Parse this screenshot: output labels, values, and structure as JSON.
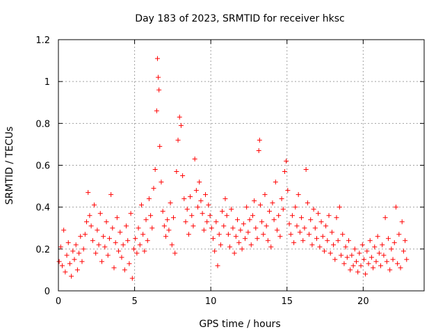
{
  "chart_data": {
    "type": "scatter",
    "title": "Day 183 of 2023, SRMTID for receiver hksc",
    "xlabel": "GPS time / hours",
    "ylabel": "SRMTID / TECUs",
    "xlim": [
      0,
      24
    ],
    "ylim": [
      0,
      1.2
    ],
    "x_ticks": [
      0,
      5,
      10,
      15,
      20
    ],
    "y_ticks": [
      0,
      0.2,
      0.4,
      0.6,
      0.8,
      1.0,
      1.2
    ],
    "y_tick_labels": [
      "0",
      "0.2",
      "0.4",
      "0.6",
      "0.8",
      "1",
      "1.2"
    ],
    "grid": true,
    "marker": "+",
    "color": "#ff0000",
    "series": [
      {
        "name": "SRMTID",
        "points": [
          [
            0.05,
            0.14
          ],
          [
            0.15,
            0.21
          ],
          [
            0.25,
            0.12
          ],
          [
            0.35,
            0.29
          ],
          [
            0.45,
            0.09
          ],
          [
            0.55,
            0.17
          ],
          [
            0.65,
            0.23
          ],
          [
            0.75,
            0.13
          ],
          [
            0.85,
            0.07
          ],
          [
            0.95,
            0.19
          ],
          [
            1.05,
            0.15
          ],
          [
            1.15,
            0.22
          ],
          [
            1.25,
            0.1
          ],
          [
            1.35,
            0.18
          ],
          [
            1.45,
            0.26
          ],
          [
            1.55,
            0.14
          ],
          [
            1.65,
            0.2
          ],
          [
            1.75,
            0.27
          ],
          [
            1.85,
            0.33
          ],
          [
            1.95,
            0.47
          ],
          [
            2.05,
            0.36
          ],
          [
            2.15,
            0.31
          ],
          [
            2.25,
            0.24
          ],
          [
            2.35,
            0.41
          ],
          [
            2.45,
            0.18
          ],
          [
            2.55,
            0.29
          ],
          [
            2.65,
            0.22
          ],
          [
            2.75,
            0.37
          ],
          [
            2.85,
            0.14
          ],
          [
            2.95,
            0.26
          ],
          [
            3.05,
            0.21
          ],
          [
            3.15,
            0.33
          ],
          [
            3.25,
            0.17
          ],
          [
            3.35,
            0.25
          ],
          [
            3.45,
            0.46
          ],
          [
            3.55,
            0.3
          ],
          [
            3.65,
            0.11
          ],
          [
            3.75,
            0.23
          ],
          [
            3.85,
            0.35
          ],
          [
            3.95,
            0.19
          ],
          [
            4.05,
            0.28
          ],
          [
            4.15,
            0.16
          ],
          [
            4.25,
            0.22
          ],
          [
            4.35,
            0.1
          ],
          [
            4.45,
            0.31
          ],
          [
            4.55,
            0.24
          ],
          [
            4.65,
            0.13
          ],
          [
            4.75,
            0.37
          ],
          [
            4.85,
            0.06
          ],
          [
            4.95,
            0.2
          ],
          [
            5.05,
            0.25
          ],
          [
            5.15,
            0.18
          ],
          [
            5.25,
            0.3
          ],
          [
            5.35,
            0.22
          ],
          [
            5.45,
            0.41
          ],
          [
            5.55,
            0.27
          ],
          [
            5.65,
            0.19
          ],
          [
            5.75,
            0.34
          ],
          [
            5.85,
            0.24
          ],
          [
            5.95,
            0.44
          ],
          [
            6.05,
            0.36
          ],
          [
            6.15,
            0.3
          ],
          [
            6.25,
            0.49
          ],
          [
            6.35,
            0.58
          ],
          [
            6.45,
            0.86
          ],
          [
            6.5,
            1.11
          ],
          [
            6.55,
            1.02
          ],
          [
            6.6,
            0.96
          ],
          [
            6.65,
            0.69
          ],
          [
            6.75,
            0.52
          ],
          [
            6.85,
            0.38
          ],
          [
            6.95,
            0.31
          ],
          [
            7.05,
            0.26
          ],
          [
            7.15,
            0.34
          ],
          [
            7.25,
            0.29
          ],
          [
            7.35,
            0.42
          ],
          [
            7.45,
            0.22
          ],
          [
            7.55,
            0.35
          ],
          [
            7.65,
            0.18
          ],
          [
            7.75,
            0.57
          ],
          [
            7.85,
            0.72
          ],
          [
            7.95,
            0.83
          ],
          [
            8.05,
            0.79
          ],
          [
            8.15,
            0.55
          ],
          [
            8.25,
            0.44
          ],
          [
            8.35,
            0.33
          ],
          [
            8.45,
            0.39
          ],
          [
            8.55,
            0.27
          ],
          [
            8.65,
            0.45
          ],
          [
            8.75,
            0.36
          ],
          [
            8.85,
            0.31
          ],
          [
            8.95,
            0.63
          ],
          [
            9.05,
            0.48
          ],
          [
            9.15,
            0.4
          ],
          [
            9.25,
            0.52
          ],
          [
            9.35,
            0.43
          ],
          [
            9.45,
            0.37
          ],
          [
            9.55,
            0.29
          ],
          [
            9.65,
            0.46
          ],
          [
            9.75,
            0.33
          ],
          [
            9.85,
            0.41
          ],
          [
            9.95,
            0.36
          ],
          [
            10.05,
            0.3
          ],
          [
            10.15,
            0.25
          ],
          [
            10.25,
            0.19
          ],
          [
            10.35,
            0.33
          ],
          [
            10.45,
            0.12
          ],
          [
            10.55,
            0.27
          ],
          [
            10.65,
            0.22
          ],
          [
            10.75,
            0.38
          ],
          [
            10.85,
            0.31
          ],
          [
            10.95,
            0.44
          ],
          [
            11.05,
            0.36
          ],
          [
            11.15,
            0.27
          ],
          [
            11.25,
            0.21
          ],
          [
            11.35,
            0.39
          ],
          [
            11.45,
            0.3
          ],
          [
            11.55,
            0.18
          ],
          [
            11.65,
            0.26
          ],
          [
            11.75,
            0.34
          ],
          [
            11.85,
            0.23
          ],
          [
            11.95,
            0.29
          ],
          [
            12.05,
            0.2
          ],
          [
            12.15,
            0.32
          ],
          [
            12.25,
            0.25
          ],
          [
            12.35,
            0.4
          ],
          [
            12.45,
            0.28
          ],
          [
            12.55,
            0.34
          ],
          [
            12.65,
            0.22
          ],
          [
            12.75,
            0.36
          ],
          [
            12.85,
            0.43
          ],
          [
            12.95,
            0.3
          ],
          [
            13.05,
            0.25
          ],
          [
            13.15,
            0.67
          ],
          [
            13.2,
            0.72
          ],
          [
            13.25,
            0.41
          ],
          [
            13.35,
            0.33
          ],
          [
            13.45,
            0.27
          ],
          [
            13.55,
            0.46
          ],
          [
            13.65,
            0.31
          ],
          [
            13.75,
            0.24
          ],
          [
            13.85,
            0.38
          ],
          [
            13.95,
            0.21
          ],
          [
            14.05,
            0.42
          ],
          [
            14.15,
            0.34
          ],
          [
            14.25,
            0.52
          ],
          [
            14.35,
            0.29
          ],
          [
            14.45,
            0.36
          ],
          [
            14.55,
            0.26
          ],
          [
            14.65,
            0.44
          ],
          [
            14.75,
            0.39
          ],
          [
            14.85,
            0.57
          ],
          [
            14.95,
            0.62
          ],
          [
            15.05,
            0.48
          ],
          [
            15.15,
            0.32
          ],
          [
            15.25,
            0.27
          ],
          [
            15.35,
            0.36
          ],
          [
            15.45,
            0.23
          ],
          [
            15.55,
            0.4
          ],
          [
            15.65,
            0.31
          ],
          [
            15.75,
            0.46
          ],
          [
            15.85,
            0.28
          ],
          [
            15.95,
            0.35
          ],
          [
            16.05,
            0.24
          ],
          [
            16.15,
            0.3
          ],
          [
            16.25,
            0.58
          ],
          [
            16.35,
            0.42
          ],
          [
            16.45,
            0.27
          ],
          [
            16.55,
            0.34
          ],
          [
            16.65,
            0.22
          ],
          [
            16.75,
            0.39
          ],
          [
            16.85,
            0.3
          ],
          [
            16.95,
            0.25
          ],
          [
            17.05,
            0.37
          ],
          [
            17.15,
            0.21
          ],
          [
            17.25,
            0.33
          ],
          [
            17.35,
            0.26
          ],
          [
            17.45,
            0.19
          ],
          [
            17.55,
            0.31
          ],
          [
            17.65,
            0.24
          ],
          [
            17.75,
            0.36
          ],
          [
            17.85,
            0.18
          ],
          [
            17.95,
            0.28
          ],
          [
            18.05,
            0.22
          ],
          [
            18.15,
            0.15
          ],
          [
            18.25,
            0.35
          ],
          [
            18.35,
            0.24
          ],
          [
            18.45,
            0.4
          ],
          [
            18.55,
            0.17
          ],
          [
            18.65,
            0.27
          ],
          [
            18.75,
            0.13
          ],
          [
            18.85,
            0.21
          ],
          [
            18.95,
            0.16
          ],
          [
            19.05,
            0.24
          ],
          [
            19.15,
            0.1
          ],
          [
            19.25,
            0.17
          ],
          [
            19.35,
            0.12
          ],
          [
            19.45,
            0.2
          ],
          [
            19.55,
            0.14
          ],
          [
            19.65,
            0.09
          ],
          [
            19.75,
            0.18
          ],
          [
            19.85,
            0.12
          ],
          [
            19.95,
            0.22
          ],
          [
            20.05,
            0.15
          ],
          [
            20.15,
            0.08
          ],
          [
            20.25,
            0.19
          ],
          [
            20.35,
            0.13
          ],
          [
            20.45,
            0.24
          ],
          [
            20.55,
            0.16
          ],
          [
            20.65,
            0.11
          ],
          [
            20.75,
            0.21
          ],
          [
            20.85,
            0.14
          ],
          [
            20.95,
            0.26
          ],
          [
            21.05,
            0.18
          ],
          [
            21.15,
            0.12
          ],
          [
            21.25,
            0.22
          ],
          [
            21.35,
            0.17
          ],
          [
            21.45,
            0.35
          ],
          [
            21.55,
            0.14
          ],
          [
            21.65,
            0.25
          ],
          [
            21.75,
            0.1
          ],
          [
            21.85,
            0.2
          ],
          [
            21.95,
            0.15
          ],
          [
            22.05,
            0.23
          ],
          [
            22.15,
            0.4
          ],
          [
            22.25,
            0.13
          ],
          [
            22.35,
            0.27
          ],
          [
            22.45,
            0.11
          ],
          [
            22.55,
            0.33
          ],
          [
            22.65,
            0.19
          ],
          [
            22.75,
            0.24
          ],
          [
            22.85,
            0.15
          ]
        ]
      }
    ]
  }
}
